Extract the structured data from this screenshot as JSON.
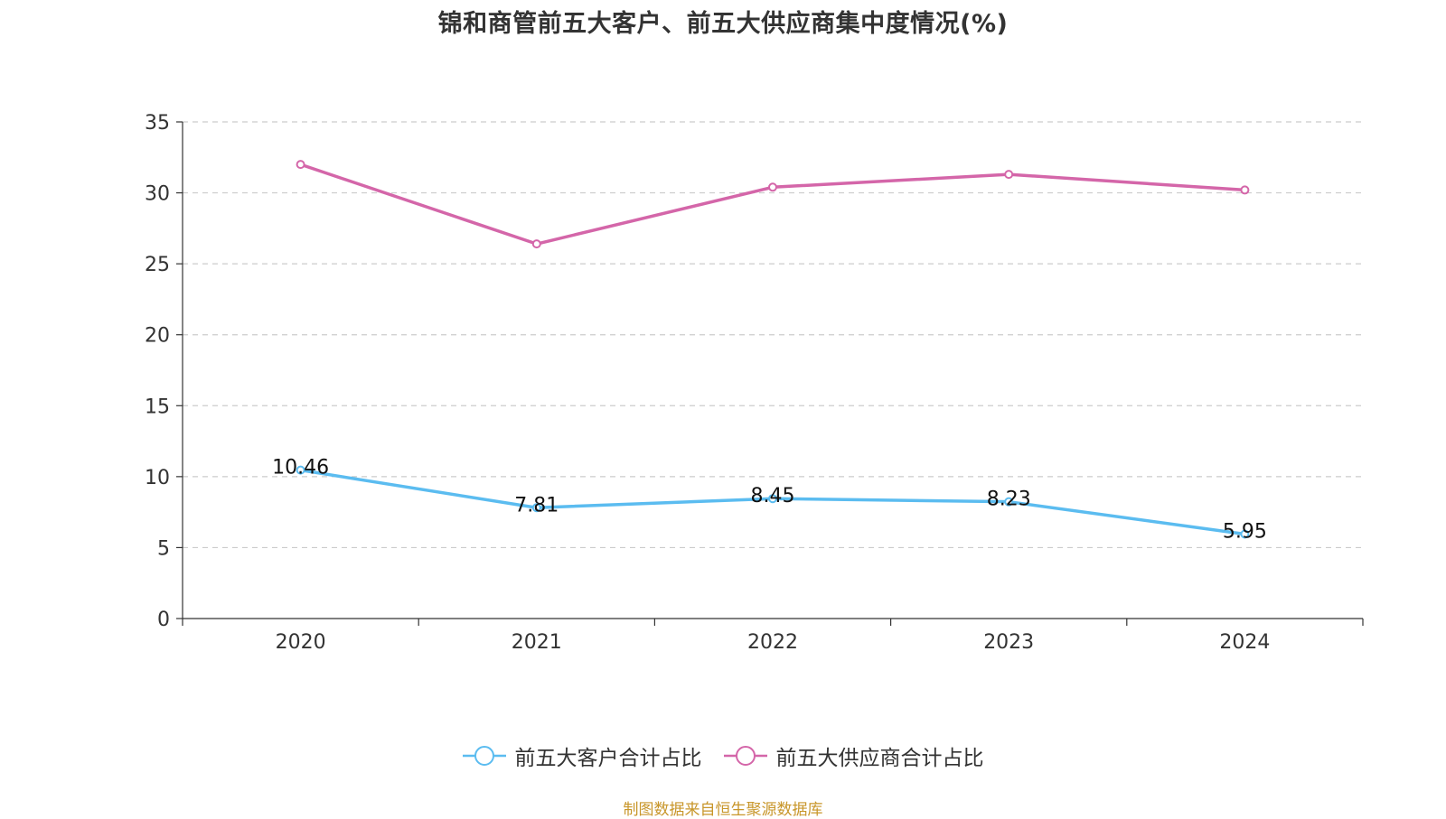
{
  "title": "锦和商管前五大客户、前五大供应商集中度情况(%)",
  "source_note": "制图数据来自恒生聚源数据库",
  "colors": {
    "series_customers": "#5bbcf0",
    "series_suppliers": "#d466a9",
    "source_note": "#c8962a",
    "grid": "#cccccc",
    "axis": "#333333"
  },
  "chart_data": {
    "type": "line",
    "title": "锦和商管前五大客户、前五大供应商集中度情况(%)",
    "xlabel": "",
    "ylabel": "",
    "categories": [
      "2020",
      "2021",
      "2022",
      "2023",
      "2024"
    ],
    "ylim": [
      0,
      35
    ],
    "yticks": [
      "0",
      "5",
      "10",
      "15",
      "20",
      "25",
      "30",
      "35"
    ],
    "grid": "horizontal dashed",
    "legend_position": "bottom-center",
    "series": [
      {
        "name": "前五大客户合计占比",
        "values": [
          10.46,
          7.81,
          8.45,
          8.23,
          5.95
        ],
        "labels": [
          "10.46",
          "7.81",
          "8.45",
          "8.23",
          "5.95"
        ],
        "show_labels": true
      },
      {
        "name": "前五大供应商合计占比",
        "values": [
          32.0,
          26.4,
          30.4,
          31.3,
          30.2
        ],
        "show_labels": false
      }
    ]
  }
}
